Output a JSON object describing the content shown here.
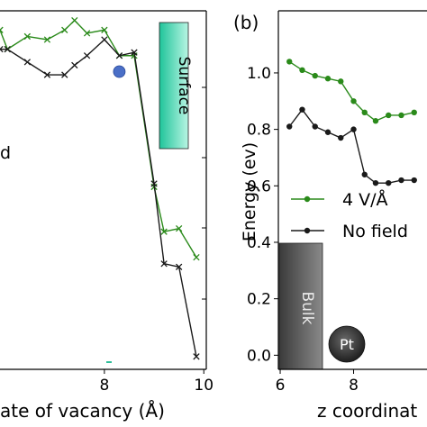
{
  "chart_data": [
    {
      "type": "line",
      "panel_label": "",
      "xlabel": "ate of vacancy (Å)",
      "ylabel": "",
      "xlim": [
        5.9,
        10.05
      ],
      "ylim": [
        0.0,
        1.12
      ],
      "x_ticks": [
        8,
        10
      ],
      "legend_fragment": "d",
      "series": [
        {
          "name": "4 V/Å",
          "color": "#2a8a1a",
          "x": [
            5.9,
            6.05,
            6.45,
            6.85,
            7.2,
            7.4,
            7.65,
            8.0,
            8.3,
            8.6,
            9.0,
            9.2,
            9.5,
            9.85
          ],
          "y": [
            1.06,
            1.0,
            1.04,
            1.03,
            1.06,
            1.09,
            1.05,
            1.06,
            0.98,
            0.98,
            0.57,
            0.43,
            0.44,
            0.35
          ]
        },
        {
          "name": "No field",
          "color": "#1a1a1a",
          "x": [
            5.9,
            6.05,
            6.45,
            6.85,
            7.2,
            7.4,
            7.65,
            8.0,
            8.3,
            8.6,
            9.0,
            9.2,
            9.5,
            9.85
          ],
          "y": [
            1.0,
            1.0,
            0.96,
            0.92,
            0.92,
            0.95,
            0.98,
            1.03,
            0.98,
            0.99,
            0.58,
            0.33,
            0.32,
            0.04
          ]
        }
      ],
      "highlight_point": {
        "x": 8.3,
        "y": 0.93,
        "color": "#4a6fc7"
      },
      "label_box": {
        "text": "Surface",
        "color": "#3ad4aa"
      }
    },
    {
      "type": "line",
      "panel_label": "(b)",
      "xlabel": "z coordinat",
      "ylabel": "Energy (ev)",
      "xlim": [
        5.95,
        10.0
      ],
      "ylim": [
        -0.05,
        1.22
      ],
      "x_ticks": [
        6,
        8
      ],
      "y_ticks": [
        0.0,
        0.2,
        0.4,
        0.6,
        0.8,
        1.0
      ],
      "series": [
        {
          "name": "4 V/Å",
          "color": "#2a8a1a",
          "x": [
            6.25,
            6.6,
            6.95,
            7.3,
            7.65,
            8.0,
            8.3,
            8.6,
            8.95,
            9.3,
            9.65
          ],
          "y": [
            1.04,
            1.01,
            0.99,
            0.98,
            0.97,
            0.9,
            0.86,
            0.83,
            0.85,
            0.85,
            0.86
          ]
        },
        {
          "name": "No field",
          "color": "#1a1a1a",
          "x": [
            6.25,
            6.6,
            6.95,
            7.3,
            7.65,
            8.0,
            8.3,
            8.6,
            8.95,
            9.3,
            9.65
          ],
          "y": [
            0.81,
            0.87,
            0.81,
            0.79,
            0.77,
            0.8,
            0.64,
            0.61,
            0.61,
            0.62,
            0.62
          ]
        }
      ],
      "legend": [
        "4 V/Å",
        "No field"
      ],
      "label_box": {
        "text": "Bulk",
        "color": "#4a4a4a"
      },
      "atom_label": "Pt"
    }
  ]
}
